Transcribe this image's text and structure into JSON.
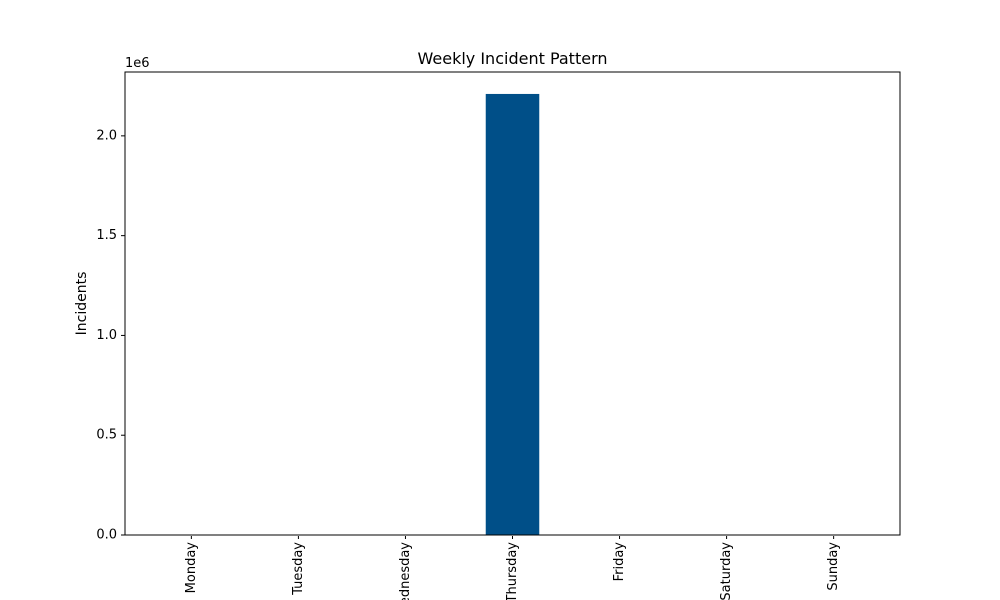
{
  "chart_data": {
    "type": "bar",
    "title": "Weekly Incident Pattern",
    "xlabel": "",
    "ylabel": "Incidents",
    "offset_label": "1e6",
    "categories": [
      "Monday",
      "Tuesday",
      "Wednesday",
      "Thursday",
      "Friday",
      "Saturday",
      "Sunday"
    ],
    "values": [
      0,
      0,
      0,
      2210000,
      0,
      0,
      0
    ],
    "ylim": [
      0,
      2320000
    ],
    "yticks": [
      0,
      500000,
      1000000,
      1500000,
      2000000
    ],
    "ytick_labels": [
      "0.0",
      "0.5",
      "1.0",
      "1.5",
      "2.0"
    ],
    "grid": false,
    "bar_color": "#004f88"
  }
}
